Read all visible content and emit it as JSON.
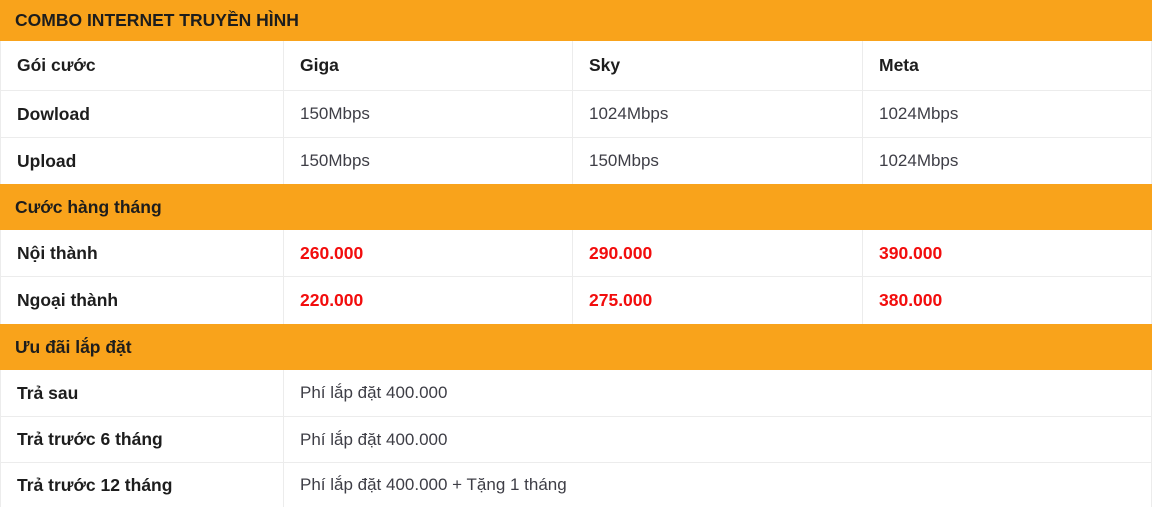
{
  "theme": {
    "orange": "#f9a31b",
    "red": "#f20d0d",
    "dark": "#1d1d1d",
    "body": "#3e3e46",
    "border": "#ececec"
  },
  "table": {
    "title": "COMBO INTERNET TRUYỀN HÌNH",
    "header": {
      "label": "Gói cước",
      "plans": [
        "Giga",
        "Sky",
        "Meta"
      ]
    },
    "speed_rows": [
      {
        "label": "Dowload",
        "values": [
          "150Mbps",
          "1024Mbps",
          "1024Mbps"
        ]
      },
      {
        "label": "Upload",
        "values": [
          "150Mbps",
          "150Mbps",
          "1024Mbps"
        ]
      }
    ],
    "monthly_section": {
      "title": "Cước hàng tháng",
      "rows": [
        {
          "label": "Nội thành",
          "values": [
            "260.000",
            "290.000",
            "390.000"
          ]
        },
        {
          "label": "Ngoại thành",
          "values": [
            "220.000",
            "275.000",
            "380.000"
          ]
        }
      ]
    },
    "install_section": {
      "title": "Ưu đãi lắp đặt",
      "rows": [
        {
          "label": "Trả sau",
          "value": "Phí lắp đặt 400.000"
        },
        {
          "label": "Trả trước 6 tháng",
          "value": "Phí lắp đặt 400.000"
        },
        {
          "label": "Trả trước 12 tháng",
          "value": "Phí lắp đặt 400.000 + Tặng 1 tháng"
        }
      ]
    }
  }
}
